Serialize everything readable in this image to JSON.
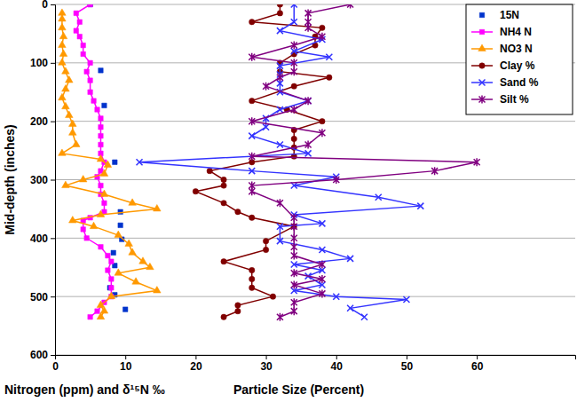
{
  "chart_data": {
    "type": "line",
    "ylabel": "Mid-depth (inches)",
    "xlabels": [
      "Nitrogen (ppm) and δ¹⁵N ‰",
      "Particle Size (Percent)"
    ],
    "xlim": [
      0,
      74
    ],
    "xticks": [
      0,
      10,
      20,
      30,
      40,
      50,
      60
    ],
    "ylim": [
      600,
      0
    ],
    "yticks": [
      0,
      100,
      200,
      300,
      400,
      500,
      600
    ],
    "grid": true,
    "legend": "upper right",
    "series": [
      {
        "name": "15N",
        "type": "scatter",
        "color": "#0033cc",
        "marker": "square",
        "line_style": "none",
        "y": [
          0,
          113,
          173,
          270,
          355,
          378,
          402,
          425,
          447,
          485,
          497,
          522
        ],
        "x": [
          5,
          6.5,
          7,
          8.5,
          9.3,
          9.3,
          9.5,
          8.3,
          8.5,
          7.8,
          8.5,
          10
        ]
      },
      {
        "name": "NH4 N",
        "color": "#ff00ff",
        "marker": "square",
        "line_style": "solid",
        "y": [
          0,
          15,
          30,
          45,
          55,
          70,
          85,
          100,
          115,
          130,
          150,
          165,
          180,
          195,
          210,
          225,
          240,
          255,
          270,
          285,
          295,
          310,
          325,
          340,
          355,
          365,
          370,
          385,
          400,
          415,
          430,
          440,
          455,
          470,
          485,
          500,
          510,
          525,
          535
        ],
        "x": [
          5,
          3,
          3.5,
          3,
          3.5,
          4,
          4,
          5,
          4.5,
          5,
          5,
          5.5,
          6,
          6.5,
          6.5,
          6.5,
          6.5,
          6.5,
          7,
          6.5,
          6,
          6.5,
          6.5,
          7,
          7,
          5,
          4,
          4,
          4.5,
          6.5,
          7.5,
          8,
          7.5,
          8,
          8,
          8,
          7,
          6,
          5
        ]
      },
      {
        "name": "NO3 N",
        "color": "#ff9900",
        "marker": "triangle",
        "line_style": "solid",
        "y": [
          15,
          25,
          40,
          55,
          70,
          85,
          100,
          115,
          130,
          145,
          160,
          175,
          190,
          205,
          220,
          240,
          255,
          265,
          275,
          290,
          300,
          310,
          325,
          340,
          350,
          360,
          370,
          380,
          395,
          410,
          425,
          440,
          450,
          460,
          475,
          490,
          500,
          515,
          525,
          535
        ],
        "x": [
          1,
          1,
          1,
          1.2,
          1,
          1.2,
          1,
          1.5,
          2,
          1.5,
          1,
          1.5,
          2,
          2.5,
          2.5,
          3,
          1,
          6.5,
          7.5,
          7,
          4,
          1.5,
          7,
          11,
          14.5,
          6.5,
          2.5,
          5.5,
          9,
          10.5,
          11,
          12.5,
          13.5,
          9,
          11.5,
          14.5,
          8,
          6.5,
          7,
          6.5
        ]
      },
      {
        "name": "Clay %",
        "color": "#800000",
        "marker": "circle",
        "line_style": "solid",
        "y": [
          0,
          15,
          30,
          40,
          55,
          70,
          85,
          100,
          115,
          125,
          140,
          165,
          180,
          200,
          215,
          230,
          245,
          260,
          270,
          285,
          300,
          310,
          320,
          340,
          355,
          365,
          380,
          405,
          420,
          440,
          455,
          470,
          485,
          500,
          515,
          525,
          535
        ],
        "x": [
          32,
          32,
          28,
          38,
          37,
          37,
          34,
          32,
          32,
          39,
          34,
          28,
          33,
          38,
          34,
          34,
          34,
          34,
          28,
          22,
          24,
          24,
          20,
          24,
          26,
          28,
          34,
          30,
          30,
          24,
          28,
          28,
          28,
          31,
          26,
          26,
          24
        ]
      },
      {
        "name": "Sand %",
        "color": "#3333ff",
        "marker": "x",
        "line_style": "solid",
        "y": [
          0,
          30,
          45,
          60,
          80,
          90,
          105,
          120,
          135,
          150,
          165,
          180,
          195,
          210,
          225,
          240,
          255,
          270,
          285,
          295,
          310,
          330,
          345,
          360,
          375,
          380,
          405,
          420,
          435,
          445,
          455,
          465,
          480,
          490,
          500,
          505,
          520,
          535
        ],
        "x": [
          34,
          34,
          32,
          38,
          34,
          39,
          32,
          32,
          32,
          32,
          36,
          32,
          30,
          30,
          28,
          32,
          36,
          12,
          28,
          40,
          34,
          46,
          52,
          34,
          38,
          32,
          32,
          38,
          42,
          34,
          38,
          36,
          38,
          34,
          40,
          50,
          42,
          44
        ]
      },
      {
        "name": "Silt %",
        "color": "#800080",
        "marker": "star",
        "line_style": "solid",
        "y": [
          0,
          15,
          30,
          40,
          55,
          70,
          90,
          100,
          115,
          125,
          140,
          165,
          180,
          200,
          220,
          240,
          260,
          270,
          285,
          300,
          310,
          320,
          340,
          365,
          380,
          400,
          415,
          430,
          445,
          460,
          470,
          480,
          495,
          510,
          525,
          535
        ],
        "x": [
          42,
          36,
          36,
          36,
          38,
          34,
          28,
          34,
          34,
          32,
          30,
          36,
          34,
          28,
          38,
          36,
          28,
          60,
          54,
          40,
          28,
          28,
          32,
          34,
          34,
          34,
          34,
          34,
          38,
          34,
          38,
          34,
          38,
          34,
          34,
          32
        ]
      }
    ]
  }
}
